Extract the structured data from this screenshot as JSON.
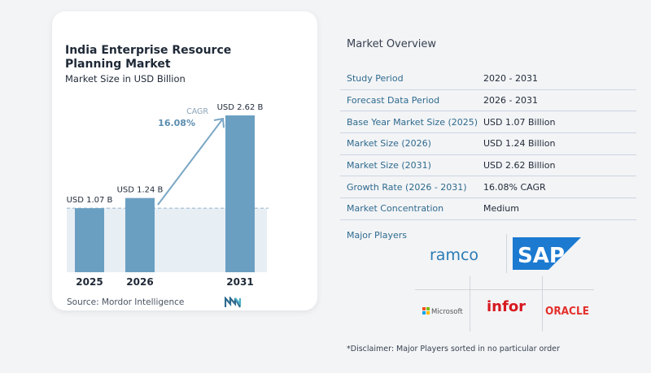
{
  "chart_data": {
    "type": "bar",
    "title": "India Enterprise Resource Planning Market",
    "subtitle": "Market Size in USD Billion",
    "categories": [
      "2025",
      "2026",
      "2031"
    ],
    "values": [
      1.07,
      1.24,
      2.62
    ],
    "value_labels": [
      "USD 1.07 B",
      "USD 1.24 B",
      "USD 2.62 B"
    ],
    "ylim": [
      0,
      2.62
    ],
    "annotation": {
      "label": "CAGR",
      "value": "16.08%"
    },
    "colors": {
      "bar": "#6b9fc2",
      "bar_light": "#8cb6d2",
      "baseline_fill": "#e7eef4",
      "dashed": "#9dbbd0",
      "arrow": "#7aa7c5",
      "cagr_label": "#8aa4b8",
      "cagr_value": "#5b8db0"
    }
  },
  "source": "Source:  Mordor Intelligence",
  "logo_icon": "mordor-intelligence-logo",
  "overview": {
    "title": "Market Overview",
    "rows": [
      {
        "label": "Study Period",
        "value": "2020 - 2031"
      },
      {
        "label": "Forecast Data Period",
        "value": "2026 - 2031"
      },
      {
        "label": "Base Year Market Size (2025)",
        "value": "USD 1.07 Billion"
      },
      {
        "label": "Market Size (2026)",
        "value": "USD 1.24 Billion"
      },
      {
        "label": "Market Size (2031)",
        "value": "USD 2.62 Billion"
      },
      {
        "label": "Growth Rate (2026 - 2031)",
        "value": "16.08% CAGR"
      },
      {
        "label": "Market Concentration",
        "value": "Medium"
      }
    ]
  },
  "players": {
    "title": "Major Players",
    "logos": [
      "ramco",
      "SAP",
      "Microsoft",
      "infor",
      "ORACLE"
    ]
  },
  "disclaimer": "*Disclaimer: Major Players sorted in no particular order"
}
